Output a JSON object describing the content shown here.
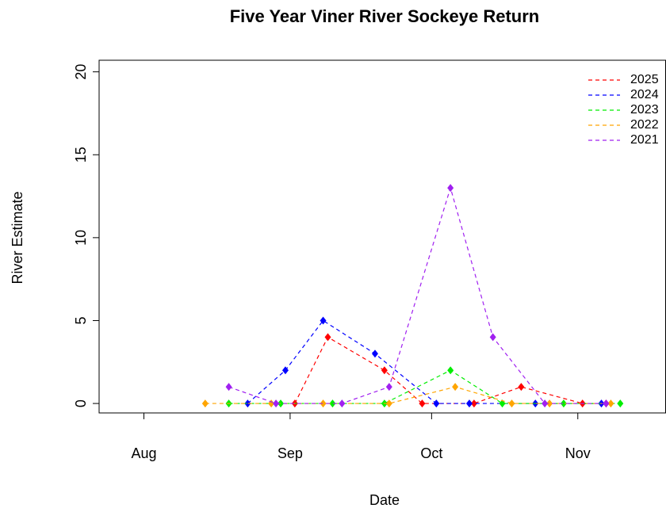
{
  "chart_data": {
    "type": "line",
    "title": "Five Year Viner River Sockeye Return",
    "xlabel": "Date",
    "ylabel": "River Estimate",
    "xlim": [
      203.5,
      323.7
    ],
    "xticks": [
      {
        "value": 213,
        "label": "Aug"
      },
      {
        "value": 244,
        "label": "Sep"
      },
      {
        "value": 274,
        "label": "Oct"
      },
      {
        "value": 305,
        "label": "Nov"
      }
    ],
    "ylim": [
      -0.57,
      20.7
    ],
    "yticks": [
      0,
      5,
      10,
      15,
      20
    ],
    "legend": "top-right",
    "series": [
      {
        "name": "2025",
        "color": "#ff0000",
        "x": [
          245,
          252,
          264,
          272,
          283,
          293,
          306,
          311
        ],
        "values": [
          0,
          4,
          2,
          0,
          0,
          1,
          0,
          0
        ]
      },
      {
        "name": "2024",
        "color": "#0000ff",
        "x": [
          235,
          243,
          251,
          262,
          275,
          282,
          296,
          310
        ],
        "values": [
          0,
          2,
          5,
          3,
          0,
          0,
          0,
          0
        ]
      },
      {
        "name": "2023",
        "color": "#00ee00",
        "x": [
          231,
          242,
          253,
          264,
          278,
          289,
          302,
          314
        ],
        "values": [
          0,
          0,
          0,
          0,
          2,
          0,
          0,
          0
        ]
      },
      {
        "name": "2022",
        "color": "#ffa500",
        "x": [
          226,
          240,
          251,
          265,
          279,
          291,
          299,
          312
        ],
        "values": [
          0,
          0,
          0,
          0,
          1,
          0,
          0,
          0
        ]
      },
      {
        "name": "2021",
        "color": "#a020f0",
        "x": [
          231,
          241,
          255,
          265,
          278,
          287,
          298,
          311
        ],
        "values": [
          1,
          0,
          0,
          1,
          13,
          4,
          0,
          0
        ]
      }
    ]
  }
}
